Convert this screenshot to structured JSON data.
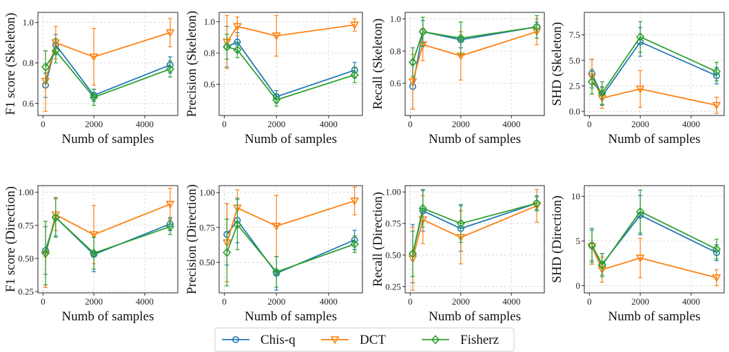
{
  "legend": {
    "entries": [
      "Chis-q",
      "DCT",
      "Fisherz"
    ]
  },
  "colors": {
    "Chis-q": "#1f77b4",
    "DCT": "#ff7f0e",
    "Fisherz": "#2ca02c",
    "grid": "#d0d0d0",
    "axis": "#222222"
  },
  "markers": {
    "Chis-q": "circle",
    "DCT": "triangle-down",
    "Fisherz": "diamond"
  },
  "chart_data": [
    {
      "type": "line",
      "title": "",
      "xlabel": "Numb of samples",
      "ylabel": "F1 score (Skeleton)",
      "x": [
        100,
        500,
        2000,
        5000
      ],
      "xlim": [
        -200,
        5300
      ],
      "ylim": [
        0.54,
        1.05
      ],
      "xticks": [
        0,
        2000,
        4000
      ],
      "yticks": [
        0.6,
        0.8,
        1.0
      ],
      "yticklabels": [
        "0.6",
        "0.8",
        "1.0"
      ],
      "grid": true,
      "series": [
        {
          "name": "Chis-q",
          "values": [
            0.69,
            0.89,
            0.64,
            0.79
          ],
          "err": [
            0.06,
            0.05,
            0.03,
            0.04
          ]
        },
        {
          "name": "DCT",
          "values": [
            0.71,
            0.9,
            0.83,
            0.95
          ],
          "err": [
            0.15,
            0.08,
            0.14,
            0.07
          ]
        },
        {
          "name": "Fisherz",
          "values": [
            0.78,
            0.86,
            0.63,
            0.77
          ],
          "err": [
            0.08,
            0.06,
            0.04,
            0.04
          ]
        }
      ]
    },
    {
      "type": "line",
      "title": "",
      "xlabel": "Numb of samples",
      "ylabel": "Precision (Skeleton)",
      "x": [
        100,
        500,
        2000,
        5000
      ],
      "xlim": [
        -200,
        5300
      ],
      "ylim": [
        0.4,
        1.06
      ],
      "xticks": [
        0,
        2000,
        4000
      ],
      "yticks": [
        0.6,
        0.8,
        1.0
      ],
      "yticklabels": [
        "0.6",
        "0.8",
        "1.0"
      ],
      "grid": true,
      "series": [
        {
          "name": "Chis-q",
          "values": [
            0.84,
            0.87,
            0.52,
            0.69
          ],
          "err": [
            0.13,
            0.06,
            0.04,
            0.05
          ]
        },
        {
          "name": "DCT",
          "values": [
            0.87,
            0.97,
            0.91,
            0.98
          ],
          "err": [
            0.17,
            0.06,
            0.13,
            0.04
          ]
        },
        {
          "name": "Fisherz",
          "values": [
            0.84,
            0.82,
            0.5,
            0.66
          ],
          "err": [
            0.08,
            0.05,
            0.04,
            0.05
          ]
        }
      ]
    },
    {
      "type": "line",
      "title": "",
      "xlabel": "Numb of samples",
      "ylabel": "Recall (Skeleton)",
      "x": [
        100,
        500,
        2000,
        5000
      ],
      "xlim": [
        -200,
        5300
      ],
      "ylim": [
        0.4,
        1.04
      ],
      "xticks": [
        0,
        2000,
        4000
      ],
      "yticks": [
        0.6,
        0.8,
        1.0
      ],
      "yticklabels": [
        "0.6",
        "0.8",
        "1.0"
      ],
      "grid": true,
      "series": [
        {
          "name": "Chis-q",
          "values": [
            0.58,
            0.92,
            0.87,
            0.95
          ],
          "err": [
            0.14,
            0.07,
            0.05,
            0.03
          ]
        },
        {
          "name": "DCT",
          "values": [
            0.61,
            0.84,
            0.77,
            0.92
          ],
          "err": [
            0.17,
            0.1,
            0.15,
            0.08
          ]
        },
        {
          "name": "Fisherz",
          "values": [
            0.73,
            0.92,
            0.88,
            0.95
          ],
          "err": [
            0.09,
            0.09,
            0.1,
            0.07
          ]
        }
      ]
    },
    {
      "type": "line",
      "title": "",
      "xlabel": "Numb of samples",
      "ylabel": "SHD (Skeleton)",
      "x": [
        100,
        500,
        2000,
        5000
      ],
      "xlim": [
        -200,
        5300
      ],
      "ylim": [
        -0.4,
        9.7
      ],
      "xticks": [
        0,
        2000,
        4000
      ],
      "yticks": [
        0.0,
        2.5,
        5.0,
        7.5
      ],
      "yticklabels": [
        "0.0",
        "2.5",
        "5.0",
        "7.5"
      ],
      "grid": true,
      "series": [
        {
          "name": "Chis-q",
          "values": [
            3.7,
            1.5,
            6.8,
            3.5
          ],
          "err": [
            1.4,
            0.9,
            1.4,
            0.8
          ]
        },
        {
          "name": "DCT",
          "values": [
            3.4,
            1.3,
            2.2,
            0.6
          ],
          "err": [
            1.7,
            1.0,
            1.8,
            0.8
          ]
        },
        {
          "name": "Fisherz",
          "values": [
            2.9,
            1.8,
            7.3,
            3.9
          ],
          "err": [
            1.2,
            1.1,
            1.5,
            0.9
          ]
        }
      ]
    },
    {
      "type": "line",
      "title": "",
      "xlabel": "Numb of samples",
      "ylabel": "F1 score (Direction)",
      "x": [
        100,
        500,
        2000,
        5000
      ],
      "xlim": [
        -200,
        5300
      ],
      "ylim": [
        0.24,
        1.05
      ],
      "xticks": [
        0,
        2000,
        4000
      ],
      "yticks": [
        0.25,
        0.5,
        0.75,
        1.0
      ],
      "yticklabels": [
        "0.25",
        "0.50",
        "0.75",
        "1.00"
      ],
      "grid": true,
      "series": [
        {
          "name": "Chis-q",
          "values": [
            0.56,
            0.81,
            0.53,
            0.76
          ],
          "err": [
            0.18,
            0.14,
            0.13,
            0.05
          ]
        },
        {
          "name": "DCT",
          "values": [
            0.53,
            0.83,
            0.68,
            0.91
          ],
          "err": [
            0.25,
            0.12,
            0.22,
            0.12
          ]
        },
        {
          "name": "Fisherz",
          "values": [
            0.54,
            0.81,
            0.54,
            0.74
          ],
          "err": [
            0.24,
            0.15,
            0.12,
            0.06
          ]
        }
      ]
    },
    {
      "type": "line",
      "title": "",
      "xlabel": "Numb of samples",
      "ylabel": "Precision (Direction)",
      "x": [
        100,
        500,
        2000,
        5000
      ],
      "xlim": [
        -200,
        5300
      ],
      "ylim": [
        0.28,
        1.05
      ],
      "xticks": [
        0,
        2000,
        4000
      ],
      "yticks": [
        0.5,
        0.75,
        1.0
      ],
      "yticklabels": [
        "0.50",
        "0.75",
        "1.00"
      ],
      "grid": true,
      "series": [
        {
          "name": "Chis-q",
          "values": [
            0.7,
            0.8,
            0.42,
            0.66
          ],
          "err": [
            0.22,
            0.16,
            0.12,
            0.07
          ]
        },
        {
          "name": "DCT",
          "values": [
            0.64,
            0.89,
            0.76,
            0.94
          ],
          "err": [
            0.28,
            0.13,
            0.22,
            0.1
          ]
        },
        {
          "name": "Fisherz",
          "values": [
            0.57,
            0.77,
            0.43,
            0.63
          ],
          "err": [
            0.24,
            0.18,
            0.11,
            0.06
          ]
        }
      ]
    },
    {
      "type": "line",
      "title": "",
      "xlabel": "Numb of samples",
      "ylabel": "Recall (Direction)",
      "x": [
        100,
        500,
        2000,
        5000
      ],
      "xlim": [
        -200,
        5300
      ],
      "ylim": [
        0.2,
        1.05
      ],
      "xticks": [
        0,
        2000,
        4000
      ],
      "yticks": [
        0.25,
        0.5,
        0.75,
        1.0
      ],
      "yticklabels": [
        "0.25",
        "0.50",
        "0.75",
        "1.00"
      ],
      "grid": true,
      "series": [
        {
          "name": "Chis-q",
          "values": [
            0.51,
            0.85,
            0.71,
            0.91
          ],
          "err": [
            0.23,
            0.16,
            0.18,
            0.05
          ]
        },
        {
          "name": "DCT",
          "values": [
            0.47,
            0.78,
            0.64,
            0.89
          ],
          "err": [
            0.25,
            0.19,
            0.21,
            0.13
          ]
        },
        {
          "name": "Fisherz",
          "values": [
            0.51,
            0.87,
            0.75,
            0.91
          ],
          "err": [
            0.18,
            0.15,
            0.15,
            0.06
          ]
        }
      ]
    },
    {
      "type": "line",
      "title": "",
      "xlabel": "Numb of samples",
      "ylabel": "SHD (Direction)",
      "x": [
        100,
        500,
        2000,
        5000
      ],
      "xlim": [
        -200,
        5300
      ],
      "ylim": [
        -0.8,
        11.2
      ],
      "xticks": [
        0,
        2000,
        4000
      ],
      "yticks": [
        0,
        5,
        10
      ],
      "yticklabels": [
        "0",
        "5",
        "10"
      ],
      "grid": true,
      "series": [
        {
          "name": "Chis-q",
          "values": [
            4.5,
            2.4,
            7.9,
            3.7
          ],
          "err": [
            1.7,
            1.2,
            2.2,
            0.9
          ]
        },
        {
          "name": "DCT",
          "values": [
            4.4,
            1.8,
            3.1,
            0.9
          ],
          "err": [
            2.0,
            1.4,
            2.2,
            0.9
          ]
        },
        {
          "name": "Fisherz",
          "values": [
            4.5,
            2.3,
            8.3,
            4.1
          ],
          "err": [
            1.9,
            1.3,
            2.4,
            1.1
          ]
        }
      ]
    }
  ]
}
